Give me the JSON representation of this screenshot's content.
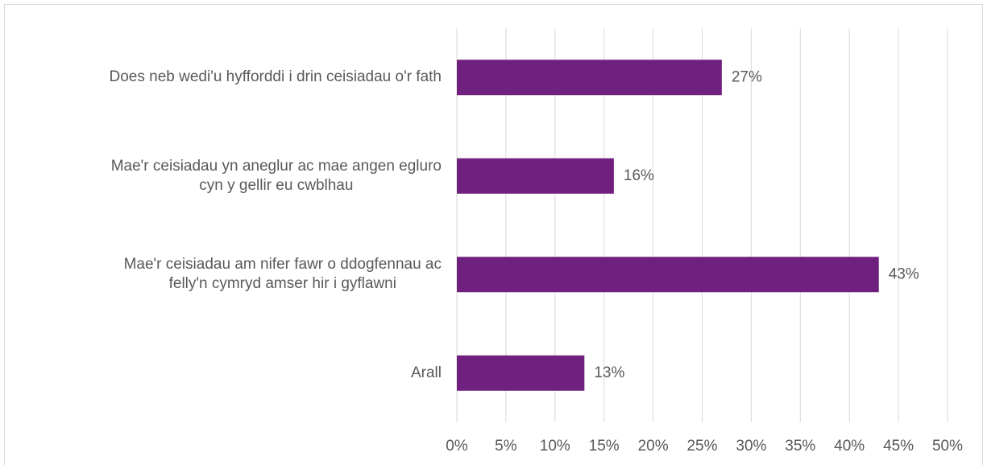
{
  "chart_data": {
    "type": "bar",
    "orientation": "horizontal",
    "categories": [
      "Does neb wedi'u hyfforddi i drin ceisiadau o'r fath",
      "Mae'r ceisiadau yn aneglur ac mae angen egluro\ncyn y gellir eu cwblhau",
      "Mae'r ceisiadau am nifer fawr o ddogfennau ac\nfelly'n cymryd amser hir i gyflawni",
      "Arall"
    ],
    "values": [
      27,
      16,
      43,
      13
    ],
    "value_labels": [
      "27%",
      "16%",
      "43%",
      "13%"
    ],
    "color": "#70207e",
    "xlim": [
      0,
      50
    ],
    "xticks": [
      {
        "value": 0,
        "label": "0%"
      },
      {
        "value": 5,
        "label": "5%"
      },
      {
        "value": 10,
        "label": "10%"
      },
      {
        "value": 15,
        "label": "15%"
      },
      {
        "value": 20,
        "label": "20%"
      },
      {
        "value": 25,
        "label": "25%"
      },
      {
        "value": 30,
        "label": "30%"
      },
      {
        "value": 35,
        "label": "35%"
      },
      {
        "value": 40,
        "label": "40%"
      },
      {
        "value": 45,
        "label": "45%"
      },
      {
        "value": 50,
        "label": "50%"
      }
    ],
    "grid": true
  }
}
